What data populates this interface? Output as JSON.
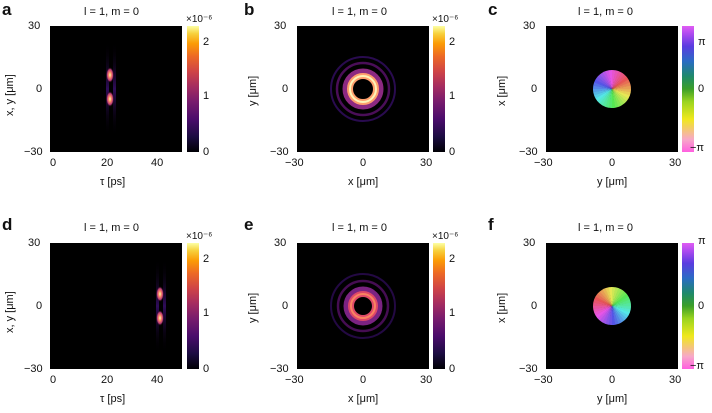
{
  "figure": {
    "panels": [
      {
        "tag": "a",
        "title": "l = 1, m = 0",
        "xlabel": "τ [ps]",
        "ylabel": "x, y [μm]",
        "xticks": [
          "0",
          "20",
          "40"
        ],
        "yticks": [
          "30",
          "0",
          "−30"
        ],
        "colorbar": {
          "type": "magnitude",
          "ticks": [
            "2",
            "1",
            "0"
          ],
          "exponent": "×10⁻⁶"
        }
      },
      {
        "tag": "b",
        "title": "l = 1, m = 0",
        "xlabel": "x [μm]",
        "ylabel": "y [μm]",
        "xticks": [
          "−30",
          "0",
          "30"
        ],
        "yticks": [
          "30",
          "0",
          "−30"
        ],
        "colorbar": {
          "type": "magnitude",
          "ticks": [
            "2",
            "1",
            "0"
          ],
          "exponent": "×10⁻⁶"
        }
      },
      {
        "tag": "c",
        "title": "l = 1, m = 0",
        "xlabel": "y [μm]",
        "ylabel": "x [μm]",
        "xticks": [
          "−30",
          "0",
          "30"
        ],
        "yticks": [
          "30",
          "0",
          "−30"
        ],
        "colorbar": {
          "type": "phase",
          "ticks": [
            "π",
            "0",
            "−π"
          ]
        }
      },
      {
        "tag": "d",
        "title": "l = 1, m = 0",
        "xlabel": "τ [ps]",
        "ylabel": "x, y [μm]",
        "xticks": [
          "0",
          "20",
          "40"
        ],
        "yticks": [
          "30",
          "0",
          "−30"
        ],
        "colorbar": {
          "type": "magnitude",
          "ticks": [
            "2",
            "1",
            "0"
          ],
          "exponent": "×10⁻⁶"
        }
      },
      {
        "tag": "e",
        "title": "l = 1, m = 0",
        "xlabel": "x [μm]",
        "ylabel": "y [μm]",
        "xticks": [
          "−30",
          "0",
          "30"
        ],
        "yticks": [
          "30",
          "0",
          "−30"
        ],
        "colorbar": {
          "type": "magnitude",
          "ticks": [
            "2",
            "1",
            "0"
          ],
          "exponent": "×10⁻⁶"
        }
      },
      {
        "tag": "f",
        "title": "l = 1, m = 0",
        "xlabel": "y [μm]",
        "ylabel": "x [μm]",
        "xticks": [
          "−30",
          "0",
          "30"
        ],
        "yticks": [
          "30",
          "0",
          "−30"
        ],
        "colorbar": {
          "type": "phase",
          "ticks": [
            "π",
            "0",
            "−π"
          ]
        }
      }
    ]
  }
}
